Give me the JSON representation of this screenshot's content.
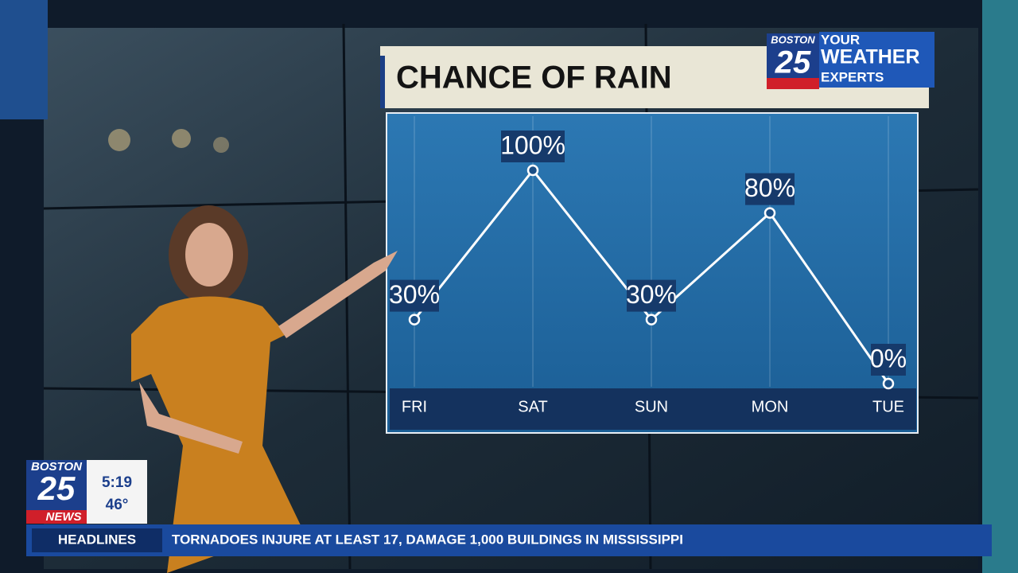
{
  "chart_data": {
    "type": "line",
    "title": "CHANCE OF RAIN",
    "categories": [
      "FRI",
      "SAT",
      "SUN",
      "MON",
      "TUE"
    ],
    "values": [
      30,
      100,
      30,
      80,
      0
    ],
    "value_labels": [
      "30%",
      "100%",
      "30%",
      "80%",
      "0%"
    ],
    "ylim": [
      0,
      100
    ],
    "color": "#ffffff",
    "grid": true
  },
  "weather_logo": {
    "brand": "BOSTON",
    "number": "25",
    "line1": "YOUR",
    "line2": "WEATHER",
    "line3": "EXPERTS"
  },
  "station_bug": {
    "brand": "BOSTON",
    "number": "25",
    "tag": "NEWS",
    "time": "5:19",
    "temperature": "46°"
  },
  "ticker": {
    "label": "HEADLINES",
    "headline": "TORNADOES INJURE AT LEAST 17, DAMAGE 1,000 BUILDINGS IN MISSISSIPPI"
  }
}
